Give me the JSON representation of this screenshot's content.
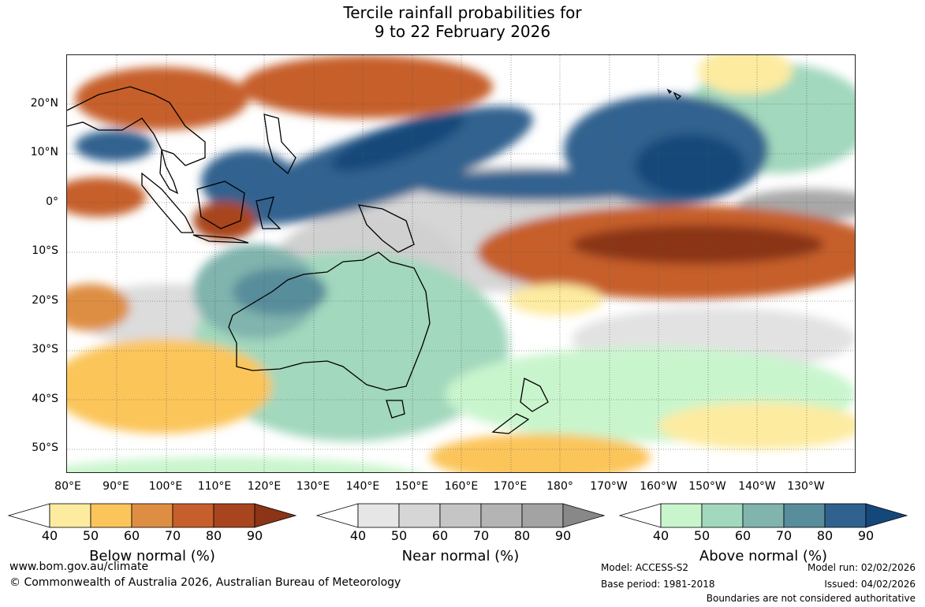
{
  "title": {
    "line1": "Tercile rainfall probabilities for",
    "line2": "9 to 22 February 2026"
  },
  "axes": {
    "lat_labels": [
      "20°N",
      "10°N",
      "0°",
      "10°S",
      "20°S",
      "30°S",
      "40°S",
      "50°S"
    ],
    "lon_labels": [
      "80°E",
      "90°E",
      "100°E",
      "110°E",
      "120°E",
      "130°E",
      "140°E",
      "150°E",
      "160°E",
      "170°E",
      "180°",
      "170°W",
      "160°W",
      "150°W",
      "140°W",
      "130°W"
    ],
    "lat_range": [
      30,
      -55
    ],
    "lon_range": [
      80,
      240
    ]
  },
  "colorbars": [
    {
      "name": "below",
      "title": "Below normal (%)",
      "ticks": [
        "40",
        "50",
        "60",
        "70",
        "80",
        "90"
      ],
      "colors": [
        "#fdeba0",
        "#fbc55a",
        "#de8e42",
        "#c65f2c",
        "#a8451f",
        "#8b3417"
      ]
    },
    {
      "name": "near",
      "title": "Near normal (%)",
      "ticks": [
        "40",
        "50",
        "60",
        "70",
        "80",
        "90"
      ],
      "colors": [
        "#e6e6e6",
        "#d6d6d6",
        "#c5c5c5",
        "#b4b4b4",
        "#a3a3a3",
        "#888888"
      ]
    },
    {
      "name": "above",
      "title": "Above normal (%)",
      "ticks": [
        "40",
        "50",
        "60",
        "70",
        "80",
        "90"
      ],
      "colors": [
        "#c9f5cd",
        "#a2d8bd",
        "#80b4ad",
        "#588d9b",
        "#31628f",
        "#15487a"
      ]
    }
  ],
  "footer": {
    "website": "www.bom.gov.au/climate",
    "copyright": "© Commonwealth of Australia 2026, Australian Bureau of Meteorology",
    "model": "Model: ACCESS-S2",
    "base_period": "Base period: 1981-2018",
    "model_run": "Model run: 02/02/2026",
    "issued": "Issued: 04/02/2026",
    "disclaimer": "Boundaries are not considered authoritative"
  }
}
